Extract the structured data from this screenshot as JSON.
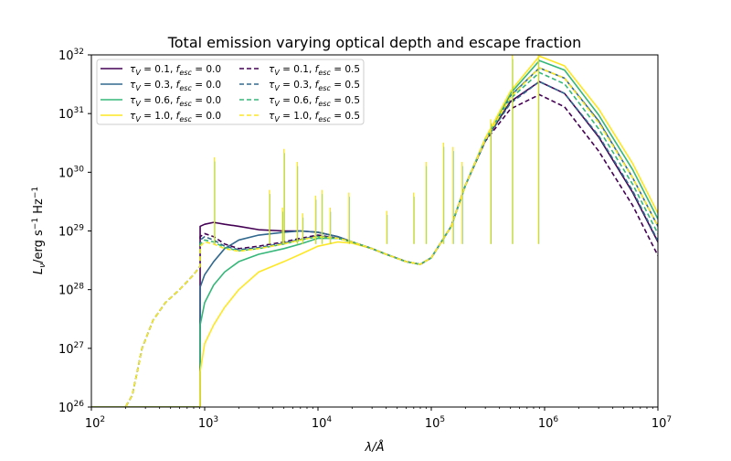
{
  "chart_data": {
    "type": "line",
    "title": "Total emission varying optical depth and escape fraction",
    "xlabel": "λ/Å",
    "ylabel": "Lν/erg s⁻¹ Hz⁻¹",
    "xscale": "log",
    "yscale": "log",
    "xlim": [
      100,
      10000000
    ],
    "ylim": [
      1e+26,
      1e+32
    ],
    "grid": false,
    "legend_position": "upper-left",
    "legend_columns": 2,
    "x_ticks": [
      {
        "value": 100,
        "label": "10",
        "exp": "2"
      },
      {
        "value": 1000,
        "label": "10",
        "exp": "3"
      },
      {
        "value": 10000,
        "label": "10",
        "exp": "4"
      },
      {
        "value": 100000,
        "label": "10",
        "exp": "5"
      },
      {
        "value": 1000000,
        "label": "10",
        "exp": "6"
      },
      {
        "value": 10000000,
        "label": "10",
        "exp": "7"
      }
    ],
    "y_ticks": [
      {
        "value": 1e+26,
        "label": "10",
        "exp": "26"
      },
      {
        "value": 1e+27,
        "label": "10",
        "exp": "27"
      },
      {
        "value": 1e+28,
        "label": "10",
        "exp": "28"
      },
      {
        "value": 1e+29,
        "label": "10",
        "exp": "29"
      },
      {
        "value": 1e+30,
        "label": "10",
        "exp": "30"
      },
      {
        "value": 1e+31,
        "label": "10",
        "exp": "31"
      },
      {
        "value": 1e+32,
        "label": "10",
        "exp": "32"
      }
    ],
    "x_anchors": [
      90,
      200,
      230,
      280,
      350,
      450,
      600,
      800,
      910,
      912,
      1000,
      1200,
      1500,
      2000,
      3000,
      5000,
      7000,
      10000,
      15000,
      20000,
      30000,
      40000,
      60000,
      80000,
      100000,
      150000,
      200000,
      300000,
      500000,
      900000,
      1500000,
      3000000,
      6000000,
      10000000
    ],
    "series": [
      {
        "name": "τV = 0.1, fesc = 0.0",
        "tau_label": "0.1",
        "fesc_label": "0.0",
        "color": "#440154",
        "dash": "solid",
        "y": [
          1e+26,
          1e+26,
          1e+26,
          1e+26,
          1e+26,
          1e+26,
          1e+26,
          1e+26,
          1e+26,
          1.2e+29,
          1.3e+29,
          1.4e+29,
          1.3e+29,
          1.2e+29,
          1.05e+29,
          1e+29,
          1e+29,
          9.5e+28,
          8e+28,
          6.5e+28,
          5e+28,
          4e+28,
          3e+28,
          2.7e+28,
          3.5e+28,
          1.2e+29,
          6e+29,
          3.5e+30,
          1.6e+31,
          3.5e+31,
          2.2e+31,
          4e+30,
          4.5e+29,
          6.5e+28
        ]
      },
      {
        "name": "τV = 0.3, fesc = 0.0",
        "tau_label": "0.3",
        "fesc_label": "0.0",
        "color": "#31688e",
        "dash": "solid",
        "y": [
          1e+26,
          1e+26,
          1e+26,
          1e+26,
          1e+26,
          1e+26,
          1e+26,
          1e+26,
          1e+26,
          1.1e+28,
          1.8e+28,
          3e+28,
          5e+28,
          7e+28,
          8.5e+28,
          9.5e+28,
          1e+29,
          9.5e+28,
          8e+28,
          6.5e+28,
          5e+28,
          4e+28,
          3e+28,
          2.7e+28,
          3.5e+28,
          1.2e+29,
          6e+29,
          3.7e+30,
          2e+31,
          6e+31,
          4e+31,
          7.5e+30,
          8e+29,
          1.2e+29
        ]
      },
      {
        "name": "τV = 0.6, fesc = 0.0",
        "tau_label": "0.6",
        "fesc_label": "0.0",
        "color": "#35b779",
        "dash": "solid",
        "y": [
          1e+26,
          1e+26,
          1e+26,
          1e+26,
          1e+26,
          1e+26,
          1e+26,
          1e+26,
          1e+26,
          2.5e+27,
          6e+27,
          1.2e+28,
          2e+28,
          3e+28,
          4e+28,
          5e+28,
          6e+28,
          7.5e+28,
          7.5e+28,
          6.5e+28,
          5e+28,
          4e+28,
          3e+28,
          2.7e+28,
          3.5e+28,
          1.2e+29,
          6e+29,
          3.8e+30,
          2.2e+31,
          8e+31,
          5.5e+31,
          9.5e+30,
          1.1e+30,
          1.6e+29
        ]
      },
      {
        "name": "τV = 1.0, fesc = 0.0",
        "tau_label": "1.0",
        "fesc_label": "0.0",
        "color": "#fde725",
        "dash": "solid",
        "y": [
          1e+26,
          1e+26,
          1e+26,
          1e+26,
          1e+26,
          1e+26,
          1e+26,
          1e+26,
          1e+26,
          4e+26,
          1.2e+27,
          2.5e+27,
          5e+27,
          1e+28,
          2e+28,
          3e+28,
          4e+28,
          5.5e+28,
          6.5e+28,
          6.2e+28,
          5e+28,
          4e+28,
          3e+28,
          2.7e+28,
          3.5e+28,
          1.2e+29,
          6e+29,
          3.8e+30,
          2.4e+31,
          9.5e+31,
          6.5e+31,
          1.2e+31,
          1.4e+30,
          2e+29
        ]
      },
      {
        "name": "τV = 0.1, fesc = 0.5",
        "tau_label": "0.1",
        "fesc_label": "0.5",
        "color": "#440154",
        "dash": "dashed",
        "y": [
          5e+25,
          1e+26,
          1.6e+26,
          1e+27,
          3e+27,
          6e+27,
          1e+28,
          1.8e+28,
          2.5e+28,
          8e+28,
          9e+28,
          8e+28,
          6e+28,
          5e+28,
          5.5e+28,
          6.5e+28,
          7.5e+28,
          8.5e+28,
          7.5e+28,
          6.5e+28,
          5e+28,
          4e+28,
          3e+28,
          2.7e+28,
          3.5e+28,
          1.2e+29,
          6e+29,
          3.4e+30,
          1.2e+31,
          2.1e+31,
          1.3e+31,
          2.3e+30,
          2.7e+29,
          3.8e+28
        ]
      },
      {
        "name": "τV = 0.3, fesc = 0.5",
        "tau_label": "0.3",
        "fesc_label": "0.5",
        "color": "#31688e",
        "dash": "dashed",
        "y": [
          5e+25,
          1e+26,
          1.6e+26,
          1e+27,
          3e+27,
          6e+27,
          1e+28,
          1.8e+28,
          2.5e+28,
          7e+28,
          8e+28,
          7e+28,
          5.5e+28,
          4.8e+28,
          5.2e+28,
          6.2e+28,
          7.2e+28,
          8.2e+28,
          7.5e+28,
          6.5e+28,
          5e+28,
          4e+28,
          3e+28,
          2.7e+28,
          3.5e+28,
          1.2e+29,
          6e+29,
          3.5e+30,
          1.5e+31,
          3.5e+31,
          2.2e+31,
          4.2e+30,
          4.8e+29,
          6.8e+28
        ]
      },
      {
        "name": "τV = 0.6, fesc = 0.5",
        "tau_label": "0.6",
        "fesc_label": "0.5",
        "color": "#35b779",
        "dash": "dashed",
        "y": [
          5e+25,
          1e+26,
          1.6e+26,
          1e+27,
          3e+27,
          6e+27,
          1e+28,
          1.8e+28,
          2.5e+28,
          6e+28,
          7e+28,
          6.5e+28,
          5.2e+28,
          4.6e+28,
          5e+28,
          6e+28,
          7e+28,
          8e+28,
          7.5e+28,
          6.5e+28,
          5e+28,
          4e+28,
          3e+28,
          2.7e+28,
          3.5e+28,
          1.2e+29,
          6e+29,
          3.6e+30,
          1.8e+31,
          5e+31,
          3.2e+31,
          5.5e+30,
          6.2e+29,
          9e+28
        ]
      },
      {
        "name": "τV = 1.0, fesc = 0.5",
        "tau_label": "1.0",
        "fesc_label": "0.5",
        "color": "#fde725",
        "dash": "dashed",
        "y": [
          5e+25,
          1e+26,
          1.6e+26,
          1e+27,
          3e+27,
          6e+27,
          1e+28,
          1.8e+28,
          2.5e+28,
          5.5e+28,
          6.5e+28,
          6e+28,
          5e+28,
          4.5e+28,
          5e+28,
          6e+28,
          7e+28,
          8e+28,
          7.5e+28,
          6.5e+28,
          5e+28,
          4e+28,
          3e+28,
          2.7e+28,
          3.5e+28,
          1.2e+29,
          6e+29,
          3.6e+30,
          1.9e+31,
          6e+31,
          4e+31,
          7e+30,
          8e+29,
          1.2e+29
        ]
      }
    ],
    "emission_lines": [
      {
        "x": 1216,
        "y": 1.8e+30
      },
      {
        "x": 3727,
        "y": 5e+29
      },
      {
        "x": 4861,
        "y": 2.5e+29
      },
      {
        "x": 5007,
        "y": 2.5e+30
      },
      {
        "x": 6563,
        "y": 1.5e+30
      },
      {
        "x": 7330,
        "y": 2e+29
      },
      {
        "x": 9532,
        "y": 4e+29
      },
      {
        "x": 10830,
        "y": 5e+29
      },
      {
        "x": 12820,
        "y": 2.5e+29
      },
      {
        "x": 18750,
        "y": 4.5e+29
      },
      {
        "x": 40500,
        "y": 2.2e+29
      },
      {
        "x": 69800,
        "y": 4.5e+29
      },
      {
        "x": 89900,
        "y": 1.5e+30
      },
      {
        "x": 128100,
        "y": 3.2e+30
      },
      {
        "x": 155500,
        "y": 2.7e+30
      },
      {
        "x": 187100,
        "y": 1.5e+30
      },
      {
        "x": 334800,
        "y": 8e+30
      },
      {
        "x": 518100,
        "y": 1e+32
      },
      {
        "x": 883300,
        "y": 1e+32
      }
    ]
  }
}
